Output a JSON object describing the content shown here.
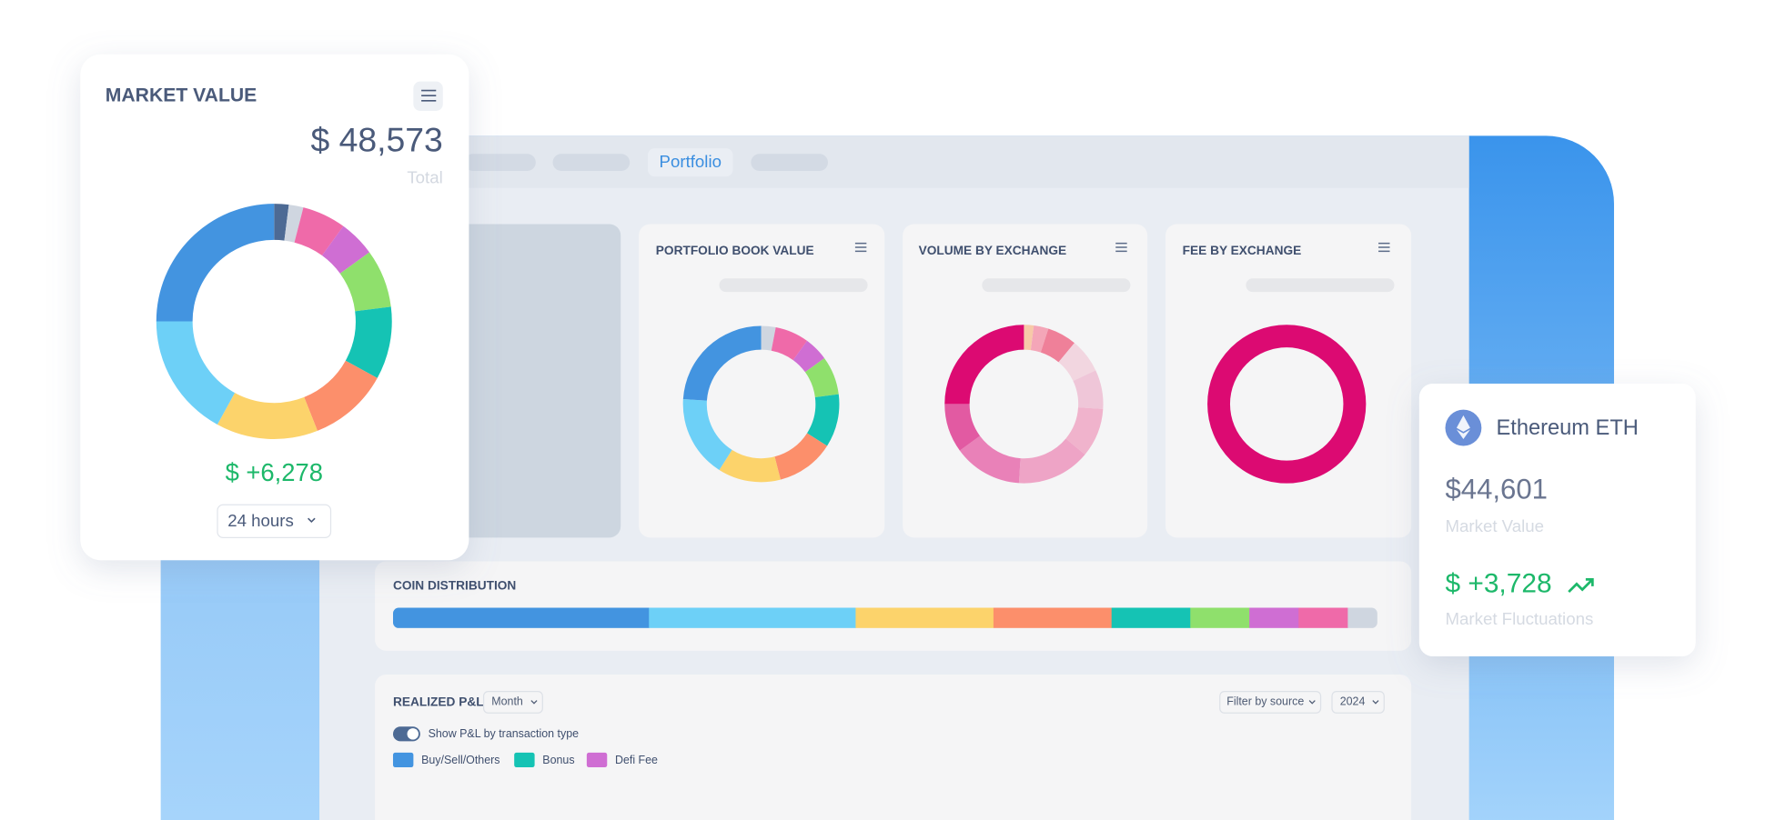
{
  "nav": {
    "tab": "Portfolio"
  },
  "market_value_card": {
    "title": "MARKET VALUE",
    "amount": "$ 48,573",
    "amount_label": "Total",
    "change": "$ +6,278",
    "period": "24 hours",
    "chart": {
      "type": "donut",
      "segments": [
        {
          "color": "#4d6a94",
          "value": 2
        },
        {
          "color": "#cfd6e0",
          "value": 2
        },
        {
          "color": "#ef6aa9",
          "value": 6
        },
        {
          "color": "#cf6ed3",
          "value": 5
        },
        {
          "color": "#8fe06c",
          "value": 8
        },
        {
          "color": "#15c3b4",
          "value": 10
        },
        {
          "color": "#fc8f6b",
          "value": 11
        },
        {
          "color": "#fcd36b",
          "value": 14
        },
        {
          "color": "#6dd0f7",
          "value": 17
        },
        {
          "color": "#4394e0",
          "value": 25
        }
      ]
    }
  },
  "portfolio_book_value": {
    "title": "PORTFOLIO BOOK VALUE",
    "chart": {
      "type": "donut",
      "segments": [
        {
          "color": "#cfd6e0",
          "value": 3
        },
        {
          "color": "#ef6aa9",
          "value": 7
        },
        {
          "color": "#cf6ed3",
          "value": 5
        },
        {
          "color": "#8fe06c",
          "value": 8
        },
        {
          "color": "#15c3b4",
          "value": 11
        },
        {
          "color": "#fc8f6b",
          "value": 12
        },
        {
          "color": "#fcd36b",
          "value": 13
        },
        {
          "color": "#6dd0f7",
          "value": 17
        },
        {
          "color": "#4394e0",
          "value": 24
        }
      ]
    }
  },
  "volume_by_exchange": {
    "title": "VOLUME BY EXCHANGE",
    "chart": {
      "type": "donut",
      "segments": [
        {
          "color": "#f7c9a8",
          "value": 2
        },
        {
          "color": "#f4a6b8",
          "value": 3
        },
        {
          "color": "#ef8099",
          "value": 6
        },
        {
          "color": "#f2d6e0",
          "value": 7
        },
        {
          "color": "#efc6d8",
          "value": 8
        },
        {
          "color": "#f0b3cc",
          "value": 10
        },
        {
          "color": "#eea4c6",
          "value": 15
        },
        {
          "color": "#e981b8",
          "value": 14
        },
        {
          "color": "#e25aa2",
          "value": 10
        },
        {
          "color": "#dc0a72",
          "value": 25
        }
      ]
    }
  },
  "fee_by_exchange": {
    "title": "FEE BY EXCHANGE",
    "chart": {
      "type": "donut",
      "segments": [
        {
          "color": "#dc0a72",
          "value": 100
        }
      ]
    }
  },
  "coin_distribution": {
    "title": "COIN DISTRIBUTION",
    "chart": {
      "type": "stacked_bar",
      "segments": [
        {
          "color": "#4394e0",
          "value": 26
        },
        {
          "color": "#6dd0f7",
          "value": 21
        },
        {
          "color": "#fcd36b",
          "value": 14
        },
        {
          "color": "#fc8f6b",
          "value": 12
        },
        {
          "color": "#15c3b4",
          "value": 8
        },
        {
          "color": "#8fe06c",
          "value": 6
        },
        {
          "color": "#cf6ed3",
          "value": 5
        },
        {
          "color": "#ef6aa9",
          "value": 5
        },
        {
          "color": "#cfd6e0",
          "value": 3
        }
      ]
    }
  },
  "realized_pnl": {
    "title": "REALIZED P&L",
    "period": "Month",
    "filter": "Filter by source",
    "year": "2024",
    "toggle_label": "Show P&L by transaction type",
    "legend": [
      {
        "name": "Buy/Sell/Others",
        "color": "#4394e0"
      },
      {
        "name": "Bonus",
        "color": "#15c3b4"
      },
      {
        "name": "Defi Fee",
        "color": "#cf6ed3"
      }
    ]
  },
  "eth_card": {
    "name": "Ethereum ETH",
    "value": "$44,601",
    "value_label": "Market Value",
    "change": "$ +3,728",
    "change_label": "Market Fluctuations"
  }
}
